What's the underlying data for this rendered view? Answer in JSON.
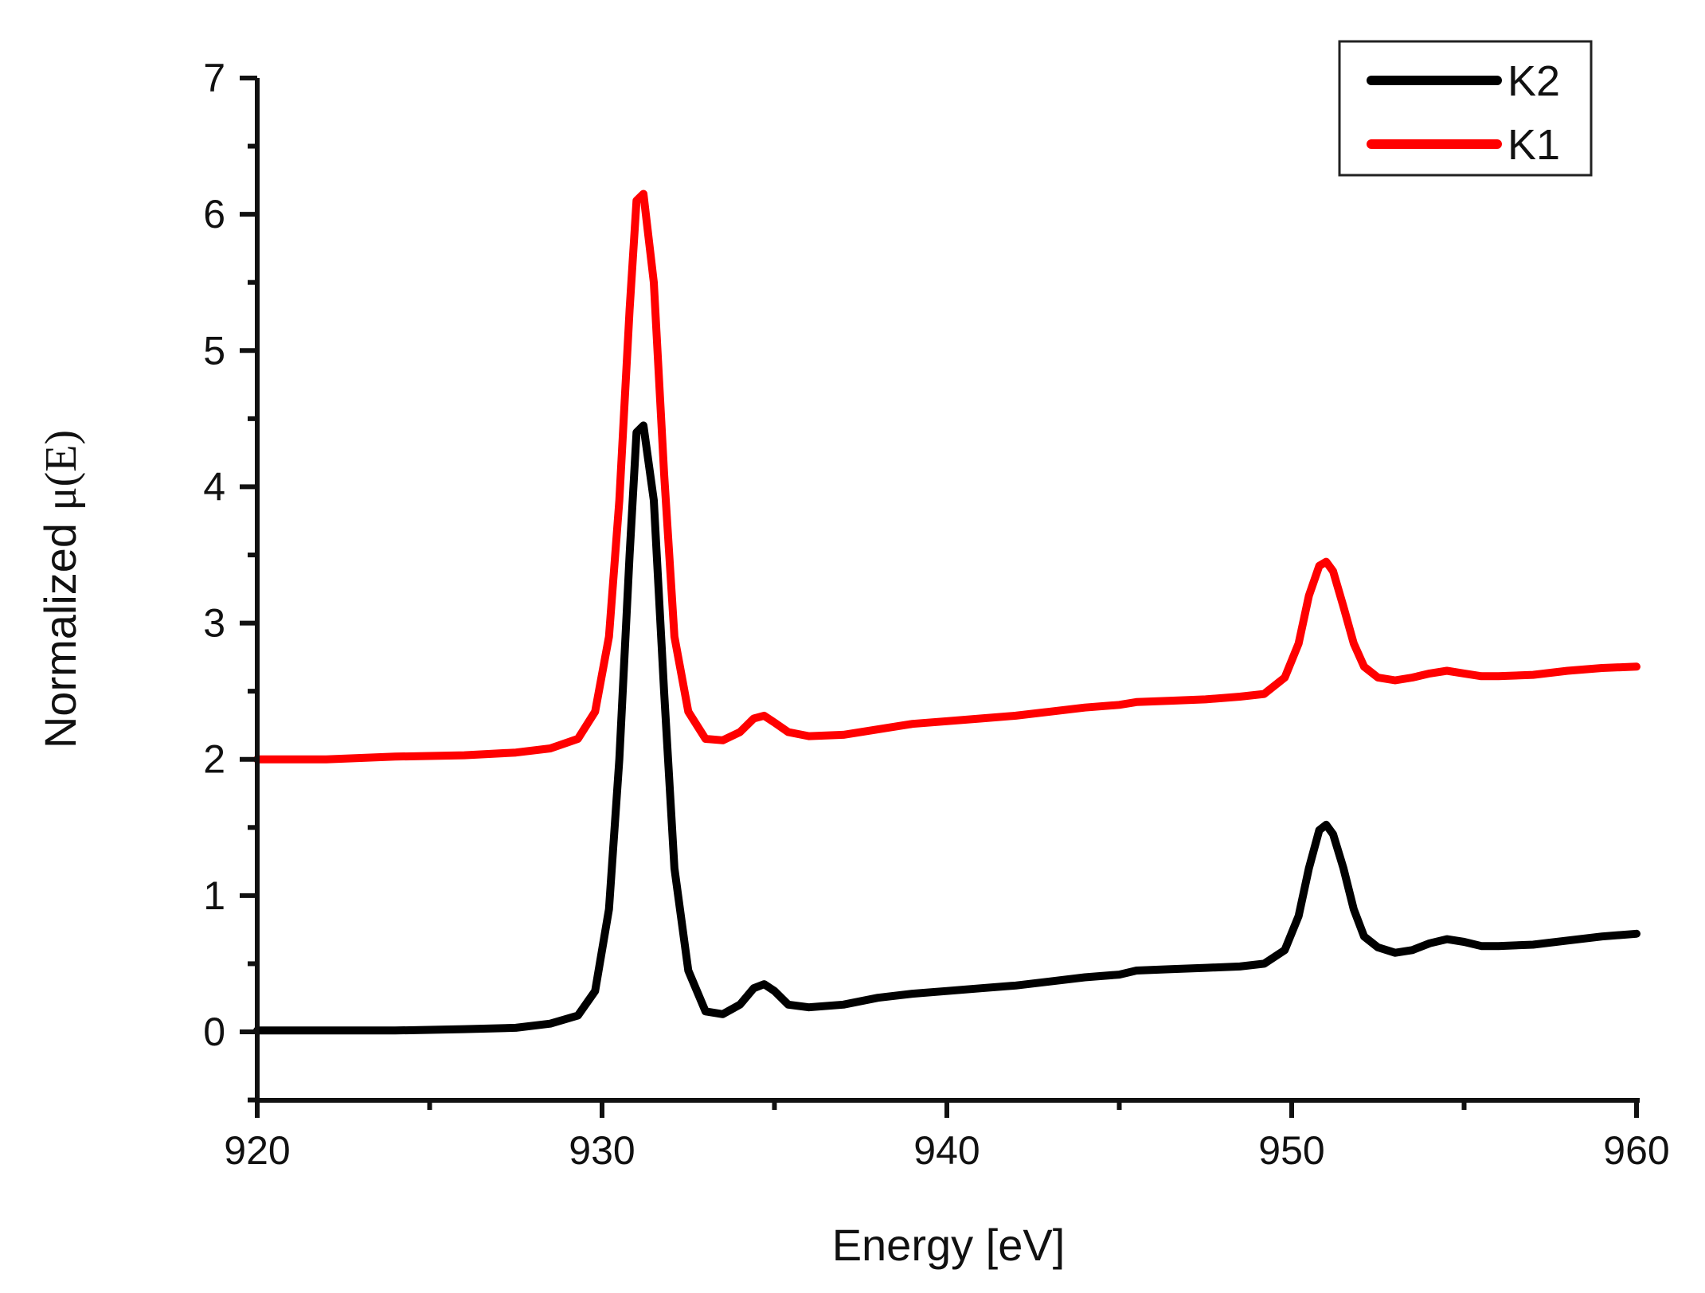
{
  "chart_data": {
    "type": "line",
    "title": "",
    "xlabel": "Energy [eV]",
    "ylabel_main": "Normalized ",
    "ylabel_symbol": "μ(E)",
    "xlim": [
      920,
      960
    ],
    "ylim": [
      -0.5,
      7
    ],
    "x_ticks": [
      920,
      930,
      940,
      950,
      960
    ],
    "x_tick_labels": [
      "920",
      "930",
      "940",
      "950",
      "960"
    ],
    "x_minor_ticks": [
      925,
      935,
      945,
      955
    ],
    "y_ticks": [
      0,
      1,
      2,
      3,
      4,
      5,
      6,
      7
    ],
    "y_tick_labels": [
      "0",
      "1",
      "2",
      "3",
      "4",
      "5",
      "6",
      "7"
    ],
    "y_minor_ticks": [
      -0.5,
      0.5,
      1.5,
      2.5,
      3.5,
      4.5,
      5.5,
      6.5
    ],
    "grid": false,
    "legend_position": "top-right",
    "series": [
      {
        "name": "K2",
        "color": "#000000",
        "x": [
          920,
          922,
          924,
          926,
          927.5,
          928.5,
          929.3,
          929.8,
          930.2,
          930.5,
          930.8,
          931.0,
          931.2,
          931.5,
          931.8,
          932.1,
          932.5,
          933.0,
          933.5,
          934.0,
          934.4,
          934.7,
          935.0,
          935.4,
          936.0,
          937.0,
          938.0,
          939.0,
          940.0,
          941.0,
          942.0,
          943.0,
          944.0,
          945.0,
          945.5,
          946.5,
          947.5,
          948.5,
          949.2,
          949.8,
          950.2,
          950.5,
          950.8,
          951.0,
          951.2,
          951.5,
          951.8,
          952.1,
          952.5,
          953.0,
          953.5,
          954.0,
          954.5,
          955.0,
          955.5,
          956.0,
          957.0,
          958.0,
          959.0,
          960.0
        ],
        "y": [
          0.01,
          0.01,
          0.01,
          0.02,
          0.03,
          0.06,
          0.12,
          0.3,
          0.9,
          2.0,
          3.5,
          4.4,
          4.45,
          3.9,
          2.5,
          1.2,
          0.45,
          0.15,
          0.13,
          0.2,
          0.32,
          0.35,
          0.3,
          0.2,
          0.18,
          0.2,
          0.25,
          0.28,
          0.3,
          0.32,
          0.34,
          0.37,
          0.4,
          0.42,
          0.45,
          0.46,
          0.47,
          0.48,
          0.5,
          0.6,
          0.85,
          1.2,
          1.48,
          1.52,
          1.45,
          1.2,
          0.9,
          0.7,
          0.62,
          0.58,
          0.6,
          0.65,
          0.68,
          0.66,
          0.63,
          0.63,
          0.64,
          0.67,
          0.7,
          0.72
        ]
      },
      {
        "name": "K1",
        "color": "#ff0000",
        "x": [
          920,
          922,
          924,
          926,
          927.5,
          928.5,
          929.3,
          929.8,
          930.2,
          930.5,
          930.8,
          931.0,
          931.2,
          931.5,
          931.8,
          932.1,
          932.5,
          933.0,
          933.5,
          934.0,
          934.4,
          934.7,
          935.0,
          935.4,
          936.0,
          937.0,
          938.0,
          939.0,
          940.0,
          941.0,
          942.0,
          943.0,
          944.0,
          945.0,
          945.5,
          946.5,
          947.5,
          948.5,
          949.2,
          949.8,
          950.2,
          950.5,
          950.8,
          951.0,
          951.2,
          951.5,
          951.8,
          952.1,
          952.5,
          953.0,
          953.5,
          954.0,
          954.5,
          955.0,
          955.5,
          956.0,
          957.0,
          958.0,
          959.0,
          960.0
        ],
        "y": [
          2.0,
          2.0,
          2.02,
          2.03,
          2.05,
          2.08,
          2.15,
          2.35,
          2.9,
          3.9,
          5.3,
          6.1,
          6.15,
          5.5,
          4.1,
          2.9,
          2.35,
          2.15,
          2.14,
          2.2,
          2.3,
          2.32,
          2.27,
          2.2,
          2.17,
          2.18,
          2.22,
          2.26,
          2.28,
          2.3,
          2.32,
          2.35,
          2.38,
          2.4,
          2.42,
          2.43,
          2.44,
          2.46,
          2.48,
          2.6,
          2.85,
          3.2,
          3.42,
          3.45,
          3.38,
          3.12,
          2.85,
          2.68,
          2.6,
          2.58,
          2.6,
          2.63,
          2.65,
          2.63,
          2.61,
          2.61,
          2.62,
          2.65,
          2.67,
          2.68
        ]
      }
    ]
  }
}
